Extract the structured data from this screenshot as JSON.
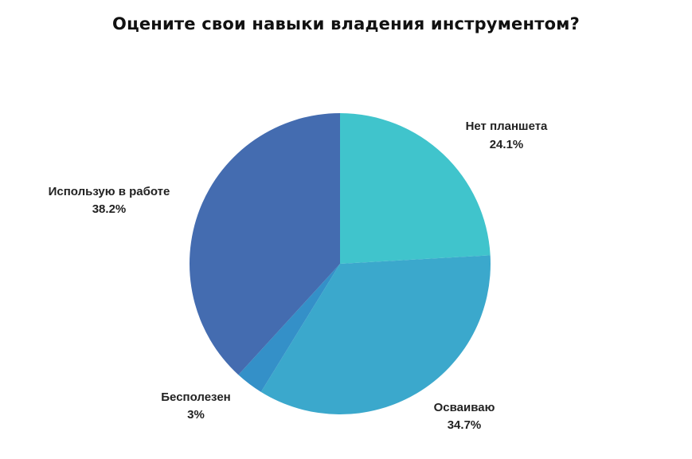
{
  "chart_data": {
    "type": "pie",
    "title": "Оцените свои навыки владения инструментом?",
    "slices": [
      {
        "label": "Нет планшета",
        "value": 24.1,
        "value_label": "24.1%",
        "color": "#40C4CC"
      },
      {
        "label": "Осваиваю",
        "value": 34.7,
        "value_label": "34.7%",
        "color": "#3BA8CC"
      },
      {
        "label": "Бесполезен",
        "value": 3.0,
        "value_label": "3%",
        "color": "#3490C8"
      },
      {
        "label": "Использую в работе",
        "value": 38.2,
        "value_label": "38.2%",
        "color": "#446CB0"
      }
    ],
    "start_angle": "12 o'clock",
    "direction": "clockwise",
    "legend": "none",
    "labels": "outside"
  }
}
